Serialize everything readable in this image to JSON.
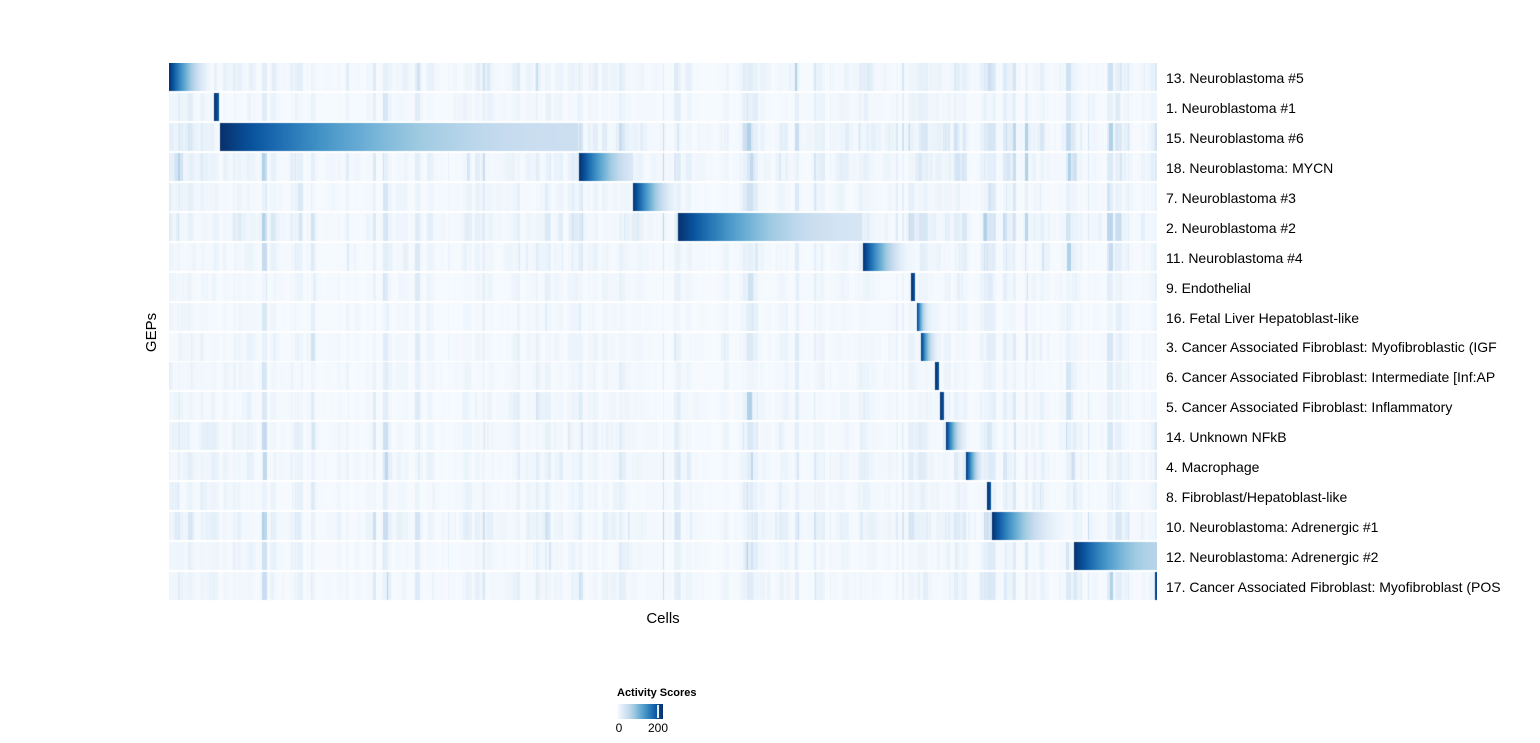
{
  "chart_data": {
    "type": "heatmap",
    "xlabel": "Cells",
    "ylabel": "GEPs",
    "legend_title": "Activity Scores",
    "legend_ticks": [
      "0",
      "200"
    ],
    "legend_tick_fraction": 0.86,
    "value_range_shown": [
      0,
      200
    ],
    "colormap": "Blues",
    "colormap_stops": [
      "#f7fbff",
      "#deebf7",
      "#c6dbef",
      "#9ecae1",
      "#6baed6",
      "#4292c6",
      "#2171b5",
      "#08519c",
      "#08306b"
    ],
    "n_rows": 18,
    "rows": [
      {
        "label": "13. Neuroblastoma #5",
        "block_start": 0.0,
        "block_end": 0.0455,
        "end_value": 0.0,
        "gamma": 1.5,
        "bg": 0.75
      },
      {
        "label": "1. Neuroblastoma #1",
        "block_start": 0.0455,
        "block_end": 0.0506,
        "end_value": 0.85,
        "gamma": 1.0,
        "bg": 0.45
      },
      {
        "label": "15. Neuroblastoma #6",
        "block_start": 0.0516,
        "block_end": 0.414,
        "end_value": 0.22,
        "gamma": 2.0,
        "bg": 1.0
      },
      {
        "label": "18. Neuroblastoma: MYCN",
        "block_start": 0.415,
        "block_end": 0.4696,
        "end_value": 0.15,
        "gamma": 1.5,
        "bg": 0.85
      },
      {
        "label": "7. Neuroblastoma #3",
        "block_start": 0.4696,
        "block_end": 0.514,
        "end_value": 0.05,
        "gamma": 1.5,
        "bg": 0.55
      },
      {
        "label": "2. Neuroblastoma #2",
        "block_start": 0.5152,
        "block_end": 0.701,
        "end_value": 0.17,
        "gamma": 2.0,
        "bg": 1.0
      },
      {
        "label": "11. Neuroblastoma #4",
        "block_start": 0.7025,
        "block_end": 0.749,
        "end_value": 0.04,
        "gamma": 1.5,
        "bg": 0.6
      },
      {
        "label": "9. Endothelial",
        "block_start": 0.751,
        "block_end": 0.7551,
        "end_value": 0.85,
        "gamma": 1.0,
        "bg": 0.45
      },
      {
        "label": "16. Fetal Liver Hepatoblast-like",
        "block_start": 0.7571,
        "block_end": 0.778,
        "end_value": 0.05,
        "gamma": 3.5,
        "bg": 0.4
      },
      {
        "label": "3. Cancer Associated Fibroblast: Myofibroblastic (IGF",
        "block_start": 0.7611,
        "block_end": 0.781,
        "end_value": 0.05,
        "gamma": 2.2,
        "bg": 0.5
      },
      {
        "label": "6. Cancer Associated Fibroblast: Intermediate [Inf:AP",
        "block_start": 0.7753,
        "block_end": 0.7794,
        "end_value": 0.85,
        "gamma": 1.0,
        "bg": 0.45
      },
      {
        "label": "5. Cancer Associated Fibroblast: Inflammatory",
        "block_start": 0.7799,
        "block_end": 0.7845,
        "end_value": 0.85,
        "gamma": 1.0,
        "bg": 0.5
      },
      {
        "label": "14. Unknown NFkB",
        "block_start": 0.7864,
        "block_end": 0.8066,
        "end_value": 0.08,
        "gamma": 1.8,
        "bg": 0.6
      },
      {
        "label": "4. Macrophage",
        "block_start": 0.8066,
        "block_end": 0.825,
        "end_value": 0.05,
        "gamma": 1.6,
        "bg": 0.65
      },
      {
        "label": "8. Fibroblast/Hepatoblast-like",
        "block_start": 0.828,
        "block_end": 0.832,
        "end_value": 0.85,
        "gamma": 1.0,
        "bg": 0.5
      },
      {
        "label": "10. Neuroblastoma: Adrenergic #1",
        "block_start": 0.833,
        "block_end": 0.915,
        "end_value": 0.02,
        "gamma": 2.0,
        "bg": 0.85
      },
      {
        "label": "12. Neuroblastoma: Adrenergic #2",
        "block_start": 0.916,
        "block_end": 1.0,
        "end_value": 0.3,
        "gamma": 1.7,
        "bg": 0.5
      },
      {
        "label": "17. Cancer Associated Fibroblast: Myofibroblast (POS",
        "block_start": 0.998,
        "block_end": 1.0,
        "end_value": 0.85,
        "gamma": 1.0,
        "bg": 0.6
      }
    ],
    "column_bands": [
      {
        "start": 0.0,
        "end": 0.05,
        "amp": 0.05
      },
      {
        "start": 0.408,
        "end": 0.417,
        "amp": 0.07
      },
      {
        "start": 0.512,
        "end": 0.518,
        "amp": 0.1
      },
      {
        "start": 0.699,
        "end": 0.705,
        "amp": 0.07
      },
      {
        "start": 0.748,
        "end": 0.754,
        "amp": 0.08
      },
      {
        "start": 0.76,
        "end": 0.782,
        "amp": 0.04
      },
      {
        "start": 0.784,
        "end": 0.79,
        "amp": 0.05
      },
      {
        "start": 0.825,
        "end": 0.836,
        "amp": 0.1
      },
      {
        "start": 0.913,
        "end": 0.919,
        "amp": 0.09
      }
    ]
  }
}
